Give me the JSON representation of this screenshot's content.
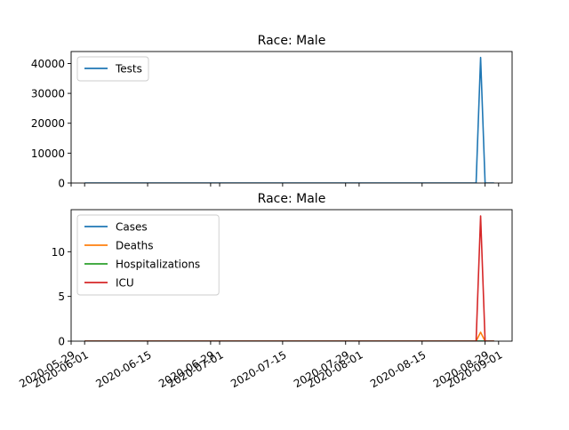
{
  "chart_data": [
    {
      "type": "line",
      "title": "Race: Male",
      "x_is_date": true,
      "xlim": [
        "2020-05-29",
        "2020-09-04"
      ],
      "ylim": [
        0,
        44000
      ],
      "y_ticks": [
        0,
        10000,
        20000,
        30000,
        40000
      ],
      "x_ticks": [
        "2020-05-29",
        "2020-06-01",
        "2020-06-15",
        "2020-06-29",
        "2020-07-01",
        "2020-07-15",
        "2020-07-29",
        "2020-08-01",
        "2020-08-15",
        "2020-08-29",
        "2020-09-01"
      ],
      "x_tick_labels_visible": false,
      "legend": "upper-left",
      "grid": false,
      "series": [
        {
          "name": "Tests",
          "color": "#1f77b4",
          "x": [
            "2020-06-01",
            "2020-08-26",
            "2020-08-27",
            "2020-08-28",
            "2020-08-29",
            "2020-08-30",
            "2020-08-31"
          ],
          "y": [
            0,
            0,
            0,
            42000,
            0,
            0,
            0
          ]
        }
      ]
    },
    {
      "type": "line",
      "title": "Race: Male",
      "x_is_date": true,
      "xlim": [
        "2020-05-29",
        "2020-09-04"
      ],
      "ylim": [
        0,
        14.7
      ],
      "y_ticks": [
        0,
        5,
        10
      ],
      "x_ticks": [
        "2020-05-29",
        "2020-06-01",
        "2020-06-15",
        "2020-06-29",
        "2020-07-01",
        "2020-07-15",
        "2020-07-29",
        "2020-08-01",
        "2020-08-15",
        "2020-08-29",
        "2020-09-01"
      ],
      "x_tick_labels_visible": true,
      "legend": "upper-left",
      "grid": false,
      "series": [
        {
          "name": "Cases",
          "color": "#1f77b4",
          "x": [
            "2020-06-01",
            "2020-08-26",
            "2020-08-27",
            "2020-08-28",
            "2020-08-29",
            "2020-08-30",
            "2020-08-31"
          ],
          "y": [
            0,
            0,
            0,
            0,
            0,
            0,
            0
          ]
        },
        {
          "name": "Deaths",
          "color": "#ff7f0e",
          "x": [
            "2020-06-01",
            "2020-08-26",
            "2020-08-27",
            "2020-08-28",
            "2020-08-29",
            "2020-08-30",
            "2020-08-31"
          ],
          "y": [
            0,
            0,
            0,
            1,
            0,
            0,
            0
          ]
        },
        {
          "name": "Hospitalizations",
          "color": "#2ca02c",
          "x": [
            "2020-06-01",
            "2020-08-26",
            "2020-08-27",
            "2020-08-28",
            "2020-08-29",
            "2020-08-30",
            "2020-08-31"
          ],
          "y": [
            0,
            0,
            0,
            0,
            0,
            0,
            0
          ]
        },
        {
          "name": "ICU",
          "color": "#d62728",
          "x": [
            "2020-06-01",
            "2020-08-26",
            "2020-08-27",
            "2020-08-28",
            "2020-08-29",
            "2020-08-30",
            "2020-08-31"
          ],
          "y": [
            0,
            0,
            0,
            14,
            0,
            0,
            0
          ]
        }
      ]
    }
  ]
}
